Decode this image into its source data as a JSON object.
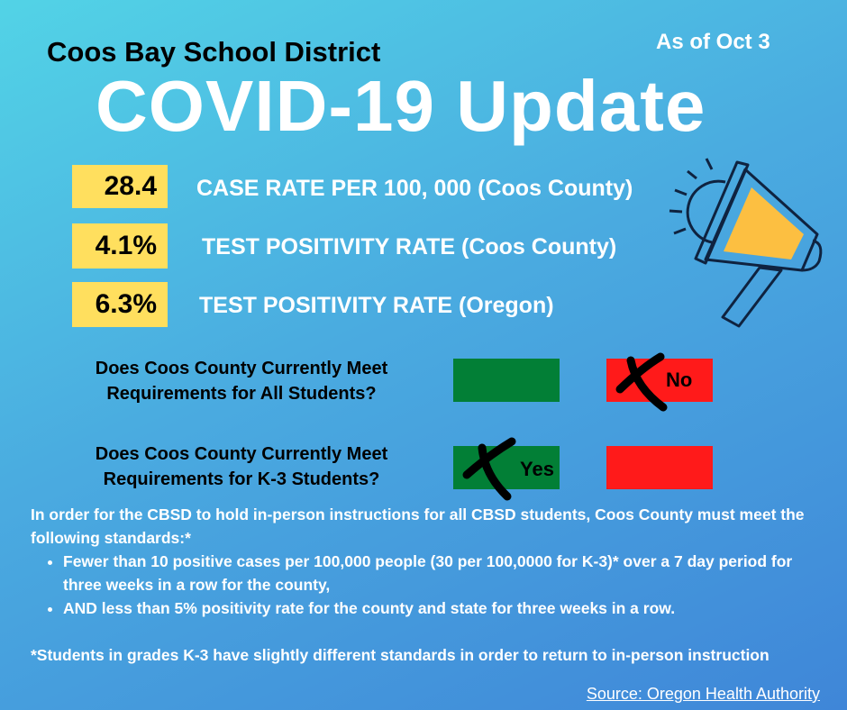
{
  "header": {
    "district": "Coos Bay School District",
    "as_of": "As of Oct 3",
    "title": "COVID-19 Update"
  },
  "stats": [
    {
      "value": "28.4",
      "label": "CASE RATE PER 100, 000 (Coos County)"
    },
    {
      "value": "4.1%",
      "label": "TEST POSITIVITY RATE (Coos County)"
    },
    {
      "value": "6.3%",
      "label": "TEST POSITIVITY RATE (Oregon)"
    }
  ],
  "questions": [
    {
      "text_line1": "Does Coos County Currently Meet",
      "text_line2": "Requirements for All Students?",
      "answer": "No",
      "marked": "No"
    },
    {
      "text_line1": "Does Coos County Currently Meet",
      "text_line2": "Requirements for K-3 Students?",
      "answer": "Yes",
      "marked": "Yes"
    }
  ],
  "icons": {
    "megaphone": "megaphone-icon",
    "mark": "x-mark-icon"
  },
  "colors": {
    "yes": "#027f36",
    "no": "#ff1a1a",
    "stat_box": "#ffdf5e",
    "megaphone_fill": "#fcbf41"
  },
  "body": {
    "intro": "In order for the CBSD to hold in-person instructions for all CBSD students, Coos County must meet the following standards:*",
    "bullets": [
      "Fewer than 10 positive cases per 100,000 people (30 per 100,0000 for K-3)* over a 7 day period for three weeks in a row for the county,",
      "AND less than 5% positivity rate for the county and state for three weeks in a row."
    ],
    "footnote": "*Students in grades K-3 have slightly different standards in order to return to in-person instruction"
  },
  "source": "Source: Oregon Health Authority"
}
